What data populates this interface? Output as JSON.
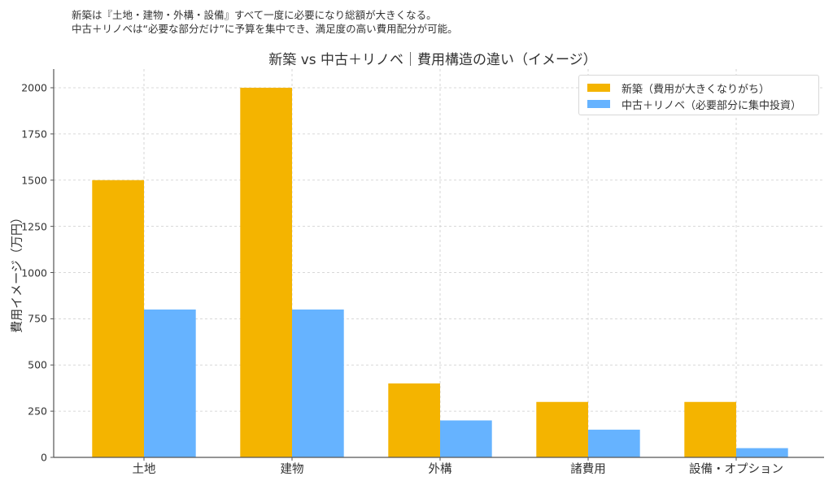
{
  "notes": {
    "line1": "新築は『土地・建物・外構・設備』すべて一度に必要になり総額が大きくなる。",
    "line2": "中古＋リノベは“必要な部分だけ”に予算を集中でき、満足度の高い費用配分が可能。"
  },
  "colors": {
    "new_build": "#F4B400",
    "renovation": "#66B3FF",
    "grid": "#cccccc",
    "axis": "#555555"
  },
  "chart_data": {
    "type": "bar",
    "title": "新築 vs 中古＋リノベ｜費用構造の違い（イメージ）",
    "xlabel": "",
    "ylabel": "費用イメージ（万円）",
    "categories": [
      "土地",
      "建物",
      "外構",
      "諸費用",
      "設備・オプション"
    ],
    "series": [
      {
        "name": "新築（費用が大きくなりがち）",
        "color": "#F4B400",
        "values": [
          1500,
          2000,
          400,
          300,
          300
        ]
      },
      {
        "name": "中古＋リノベ（必要部分に集中投資）",
        "color": "#66B3FF",
        "values": [
          800,
          800,
          200,
          150,
          50
        ]
      }
    ],
    "ylim": [
      0,
      2100
    ],
    "yticks": [
      0,
      250,
      500,
      750,
      1000,
      1250,
      1500,
      1750,
      2000
    ],
    "grid": true,
    "grid_style": "dashed",
    "legend_position": "upper right"
  }
}
